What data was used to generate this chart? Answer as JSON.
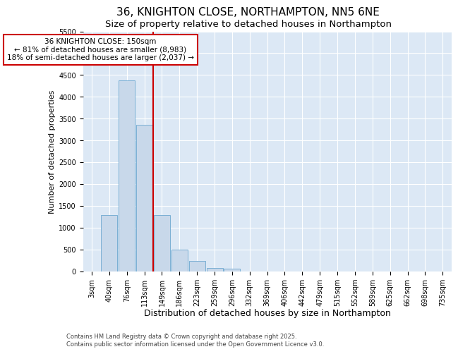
{
  "title": "36, KNIGHTON CLOSE, NORTHAMPTON, NN5 6NE",
  "subtitle": "Size of property relative to detached houses in Northampton",
  "xlabel": "Distribution of detached houses by size in Northampton",
  "ylabel": "Number of detached properties",
  "categories": [
    "3sqm",
    "40sqm",
    "76sqm",
    "113sqm",
    "149sqm",
    "186sqm",
    "223sqm",
    "259sqm",
    "296sqm",
    "332sqm",
    "369sqm",
    "406sqm",
    "442sqm",
    "479sqm",
    "515sqm",
    "552sqm",
    "589sqm",
    "625sqm",
    "662sqm",
    "698sqm",
    "735sqm"
  ],
  "bar_heights": [
    0,
    1280,
    4380,
    3350,
    1280,
    500,
    230,
    80,
    50,
    0,
    0,
    0,
    0,
    0,
    0,
    0,
    0,
    0,
    0,
    0,
    0
  ],
  "bar_color": "#c8d8ea",
  "bar_edge_color": "#7aafd4",
  "vline_x_index": 4,
  "vline_color": "#cc0000",
  "annotation_text": "36 KNIGHTON CLOSE: 150sqm\n← 81% of detached houses are smaller (8,983)\n18% of semi-detached houses are larger (2,037) →",
  "annotation_box_edgecolor": "#cc0000",
  "ylim": [
    0,
    5500
  ],
  "yticks": [
    0,
    500,
    1000,
    1500,
    2000,
    2500,
    3000,
    3500,
    4000,
    4500,
    5000,
    5500
  ],
  "plot_bg_color": "#dce8f5",
  "fig_bg_color": "#ffffff",
  "grid_color": "#ffffff",
  "footer": "Contains HM Land Registry data © Crown copyright and database right 2025.\nContains public sector information licensed under the Open Government Licence v3.0.",
  "title_fontsize": 11,
  "subtitle_fontsize": 9.5,
  "xlabel_fontsize": 9,
  "ylabel_fontsize": 8,
  "tick_fontsize": 7,
  "annotation_fontsize": 7.5,
  "footer_fontsize": 6
}
